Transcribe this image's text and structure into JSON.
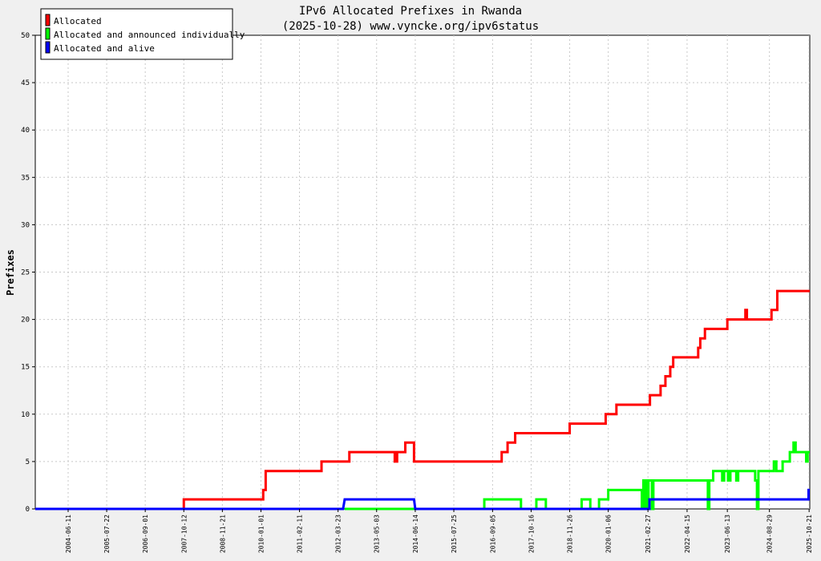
{
  "chart_data": {
    "type": "line",
    "title": "IPv6 Allocated Prefixes in Rwanda",
    "subtitle": "(2025-10-28) www.vyncke.org/ipv6status",
    "ylabel": "Prefixes",
    "xlabel": "",
    "ylim": [
      0,
      50
    ],
    "yticks": [
      0,
      5,
      10,
      15,
      20,
      25,
      30,
      35,
      40,
      45,
      50
    ],
    "xlim": [
      "2003-07-01",
      "2025-10-28"
    ],
    "xticks": [
      "2004-06-11",
      "2005-07-22",
      "2006-09-01",
      "2007-10-12",
      "2008-11-21",
      "2010-01-01",
      "2011-02-11",
      "2012-03-23",
      "2013-05-03",
      "2014-06-14",
      "2015-07-25",
      "2016-09-05",
      "2017-10-16",
      "2018-11-26",
      "2020-01-06",
      "2021-02-27",
      "2022-04-15",
      "2023-06-13",
      "2024-08-29",
      "2025-10-21"
    ],
    "grid": true,
    "legend_position": "top-left",
    "series": [
      {
        "name": "Allocated",
        "color": "#ff0000",
        "points": [
          [
            "2003-07-01",
            0
          ],
          [
            "2007-10-12",
            0
          ],
          [
            "2007-10-12",
            1
          ],
          [
            "2010-01-25",
            1
          ],
          [
            "2010-01-25",
            2
          ],
          [
            "2010-02-20",
            2
          ],
          [
            "2010-02-20",
            4
          ],
          [
            "2011-10-01",
            4
          ],
          [
            "2011-10-01",
            5
          ],
          [
            "2012-07-20",
            5
          ],
          [
            "2012-07-20",
            6
          ],
          [
            "2013-11-10",
            6
          ],
          [
            "2013-11-10",
            5
          ],
          [
            "2013-12-05",
            5
          ],
          [
            "2013-12-05",
            6
          ],
          [
            "2014-03-01",
            6
          ],
          [
            "2014-03-01",
            7
          ],
          [
            "2014-06-01",
            7
          ],
          [
            "2014-06-01",
            5
          ],
          [
            "2016-12-10",
            5
          ],
          [
            "2016-12-10",
            6
          ],
          [
            "2017-02-10",
            6
          ],
          [
            "2017-02-10",
            7
          ],
          [
            "2017-05-01",
            7
          ],
          [
            "2017-05-01",
            8
          ],
          [
            "2018-11-26",
            8
          ],
          [
            "2018-11-26",
            9
          ],
          [
            "2019-12-10",
            9
          ],
          [
            "2019-12-10",
            10
          ],
          [
            "2020-04-01",
            10
          ],
          [
            "2020-04-01",
            11
          ],
          [
            "2021-03-20",
            11
          ],
          [
            "2021-03-20",
            12
          ],
          [
            "2021-07-10",
            12
          ],
          [
            "2021-07-10",
            13
          ],
          [
            "2021-08-30",
            13
          ],
          [
            "2021-08-30",
            14
          ],
          [
            "2021-10-20",
            14
          ],
          [
            "2021-10-20",
            15
          ],
          [
            "2021-11-20",
            15
          ],
          [
            "2021-11-20",
            16
          ],
          [
            "2022-08-10",
            16
          ],
          [
            "2022-08-10",
            17
          ],
          [
            "2022-09-01",
            17
          ],
          [
            "2022-09-01",
            18
          ],
          [
            "2022-10-20",
            18
          ],
          [
            "2022-10-20",
            19
          ],
          [
            "2023-06-13",
            19
          ],
          [
            "2023-06-13",
            20
          ],
          [
            "2023-12-20",
            20
          ],
          [
            "2023-12-20",
            21
          ],
          [
            "2024-01-05",
            21
          ],
          [
            "2024-01-05",
            20
          ],
          [
            "2024-09-20",
            20
          ],
          [
            "2024-09-20",
            21
          ],
          [
            "2024-11-20",
            21
          ],
          [
            "2024-11-20",
            23
          ],
          [
            "2025-10-28",
            23
          ]
        ]
      },
      {
        "name": "Allocated and announced individually",
        "color": "#00ff00",
        "points": [
          [
            "2012-06-01",
            0
          ],
          [
            "2014-06-14",
            0
          ],
          [
            "2016-06-10",
            0
          ],
          [
            "2016-06-10",
            1
          ],
          [
            "2017-07-01",
            1
          ],
          [
            "2017-07-01",
            0
          ],
          [
            "2017-12-10",
            0
          ],
          [
            "2017-12-10",
            1
          ],
          [
            "2018-03-20",
            1
          ],
          [
            "2018-03-20",
            0
          ],
          [
            "2019-04-01",
            0
          ],
          [
            "2019-04-01",
            1
          ],
          [
            "2019-07-01",
            1
          ],
          [
            "2019-07-01",
            0
          ],
          [
            "2019-10-01",
            0
          ],
          [
            "2019-10-01",
            1
          ],
          [
            "2020-01-06",
            1
          ],
          [
            "2020-01-06",
            2
          ],
          [
            "2020-12-25",
            2
          ],
          [
            "2020-12-25",
            0
          ],
          [
            "2021-01-10",
            0
          ],
          [
            "2021-01-10",
            3
          ],
          [
            "2021-01-25",
            3
          ],
          [
            "2021-01-25",
            0
          ],
          [
            "2021-02-05",
            0
          ],
          [
            "2021-02-05",
            3
          ],
          [
            "2021-02-20",
            3
          ],
          [
            "2021-02-20",
            0
          ],
          [
            "2021-03-05",
            0
          ],
          [
            "2021-03-05",
            3
          ],
          [
            "2021-04-10",
            3
          ],
          [
            "2021-04-10",
            0
          ],
          [
            "2021-04-25",
            0
          ],
          [
            "2021-04-25",
            3
          ],
          [
            "2022-11-20",
            3
          ],
          [
            "2022-11-20",
            0
          ],
          [
            "2022-12-05",
            0
          ],
          [
            "2022-12-05",
            3
          ],
          [
            "2023-01-15",
            3
          ],
          [
            "2023-01-15",
            4
          ],
          [
            "2023-04-20",
            4
          ],
          [
            "2023-04-20",
            3
          ],
          [
            "2023-05-10",
            3
          ],
          [
            "2023-05-10",
            4
          ],
          [
            "2023-06-20",
            4
          ],
          [
            "2023-06-20",
            3
          ],
          [
            "2023-07-15",
            3
          ],
          [
            "2023-07-15",
            4
          ],
          [
            "2023-09-15",
            4
          ],
          [
            "2023-09-15",
            3
          ],
          [
            "2023-10-05",
            3
          ],
          [
            "2023-10-05",
            4
          ],
          [
            "2024-04-01",
            4
          ],
          [
            "2024-04-01",
            3
          ],
          [
            "2024-04-20",
            3
          ],
          [
            "2024-04-20",
            0
          ],
          [
            "2024-05-05",
            0
          ],
          [
            "2024-05-05",
            4
          ],
          [
            "2024-10-15",
            4
          ],
          [
            "2024-10-15",
            5
          ],
          [
            "2024-11-10",
            5
          ],
          [
            "2024-11-10",
            4
          ],
          [
            "2025-01-15",
            4
          ],
          [
            "2025-01-15",
            5
          ],
          [
            "2025-04-01",
            5
          ],
          [
            "2025-04-01",
            6
          ],
          [
            "2025-05-10",
            6
          ],
          [
            "2025-05-10",
            7
          ],
          [
            "2025-06-01",
            7
          ],
          [
            "2025-06-01",
            6
          ],
          [
            "2025-09-20",
            6
          ],
          [
            "2025-09-20",
            5
          ],
          [
            "2025-10-05",
            5
          ],
          [
            "2025-10-05",
            6
          ],
          [
            "2025-10-28",
            6
          ]
        ]
      },
      {
        "name": "Allocated and alive",
        "color": "#0000ff",
        "points": [
          [
            "2003-07-01",
            0
          ],
          [
            "2012-05-15",
            0
          ],
          [
            "2012-06-01",
            1
          ],
          [
            "2014-06-01",
            1
          ],
          [
            "2014-06-14",
            0
          ],
          [
            "2021-03-15",
            0
          ],
          [
            "2021-03-15",
            1
          ],
          [
            "2025-10-15",
            1
          ],
          [
            "2025-10-15",
            2
          ],
          [
            "2025-10-28",
            2
          ]
        ]
      }
    ]
  }
}
